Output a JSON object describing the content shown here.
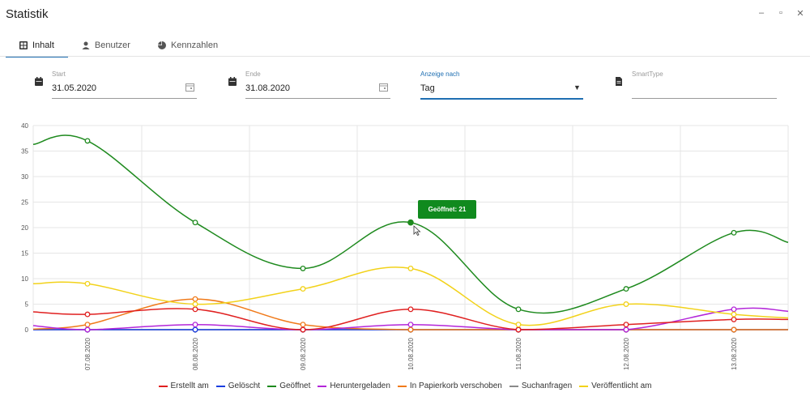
{
  "window": {
    "title": "Statistik",
    "controls": [
      "–",
      "▫",
      "✕"
    ]
  },
  "tabs": [
    {
      "label": "Inhalt",
      "icon": "grid-icon",
      "active": true
    },
    {
      "label": "Benutzer",
      "icon": "user-icon",
      "active": false
    },
    {
      "label": "Kennzahlen",
      "icon": "pie-icon",
      "active": false
    }
  ],
  "filters": {
    "start": {
      "label": "Start",
      "value": "31.05.2020"
    },
    "end": {
      "label": "Ende",
      "value": "31.08.2020"
    },
    "display": {
      "label": "Anzeige nach",
      "value": "Tag"
    },
    "smarttype": {
      "label": "SmartType",
      "value": ""
    }
  },
  "tooltip": {
    "text": "Geöffnet: 21"
  },
  "chart_data": {
    "type": "line",
    "categories": [
      "07.08.2020",
      "08.08.2020",
      "09.08.2020",
      "10.08.2020",
      "11.08.2020",
      "12.08.2020",
      "13.08.2020"
    ],
    "ylim": [
      0,
      40
    ],
    "yticks": [
      "0",
      "5",
      "10",
      "15",
      "20",
      "25",
      "30",
      "35",
      "40"
    ],
    "grid": true,
    "legend_position": "bottom",
    "series": [
      {
        "name": "Erstellt am",
        "color": "#e02020",
        "values": [
          3,
          4,
          0,
          4,
          0,
          1,
          2
        ],
        "edge": [
          3.5,
          2
        ]
      },
      {
        "name": "Gelöscht",
        "color": "#1a3ee0",
        "values": [
          0,
          0,
          0,
          0,
          0,
          0,
          0
        ],
        "edge": [
          0,
          0
        ]
      },
      {
        "name": "Geöffnet",
        "color": "#1e8a1e",
        "values": [
          37,
          21,
          12,
          21,
          4,
          8,
          19
        ],
        "edge": [
          36.3,
          17.1
        ]
      },
      {
        "name": "Heruntergeladen",
        "color": "#b326d9",
        "values": [
          0,
          1,
          0,
          1,
          0,
          0,
          4
        ],
        "edge": [
          0.8,
          3.6
        ]
      },
      {
        "name": "In Papierkorb verschoben",
        "color": "#f07a1a",
        "values": [
          1,
          6,
          1,
          0,
          0,
          0,
          0
        ],
        "edge": [
          0.1,
          0
        ]
      },
      {
        "name": "Suchanfragen",
        "color": "#8a8a8a",
        "values": [
          0,
          0,
          0,
          0,
          0,
          0,
          0
        ],
        "edge": [
          0,
          0
        ]
      },
      {
        "name": "Veröffentlicht am",
        "color": "#f2d21a",
        "values": [
          9,
          5,
          8,
          12,
          1,
          5,
          3
        ],
        "edge": [
          9,
          2.3
        ]
      }
    ]
  }
}
